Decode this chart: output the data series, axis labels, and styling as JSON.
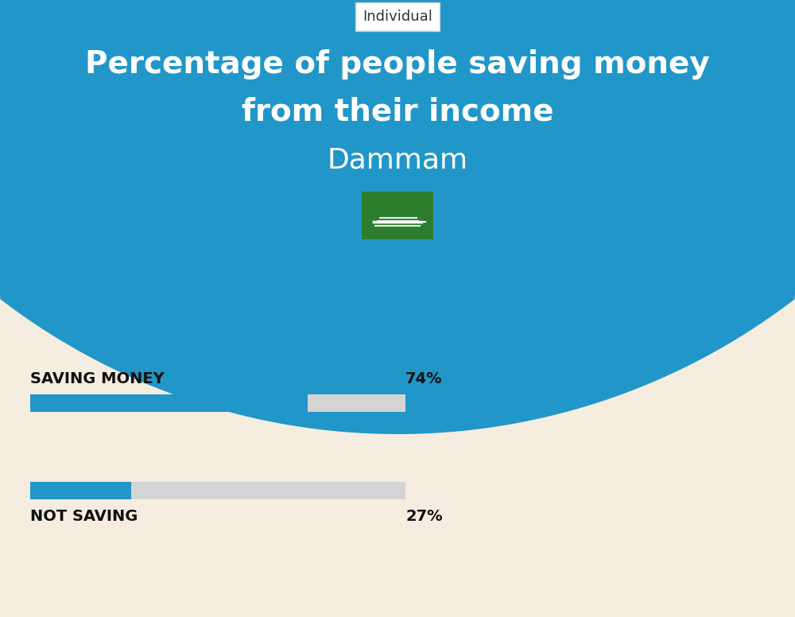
{
  "title_line1": "Percentage of people saving money",
  "title_line2": "from their income",
  "subtitle": "Dammam",
  "tag_label": "Individual",
  "bg_color": "#f5ede0",
  "header_bg_color": "#2196c9",
  "bar1_label": "SAVING MONEY",
  "bar1_value": 74,
  "bar1_pct": "74%",
  "bar2_label": "NOT SAVING",
  "bar2_value": 27,
  "bar2_pct": "27%",
  "bar_filled_color": "#2196c9",
  "bar_empty_color": "#d4d4d4",
  "bar_max": 100,
  "title_color": "#ffffff",
  "subtitle_color": "#ffffff",
  "label_color": "#111111",
  "pct_color": "#111111",
  "tag_bg": "#ffffff",
  "flag_green": "#2d7d2e",
  "flag_white": "#ffffff"
}
